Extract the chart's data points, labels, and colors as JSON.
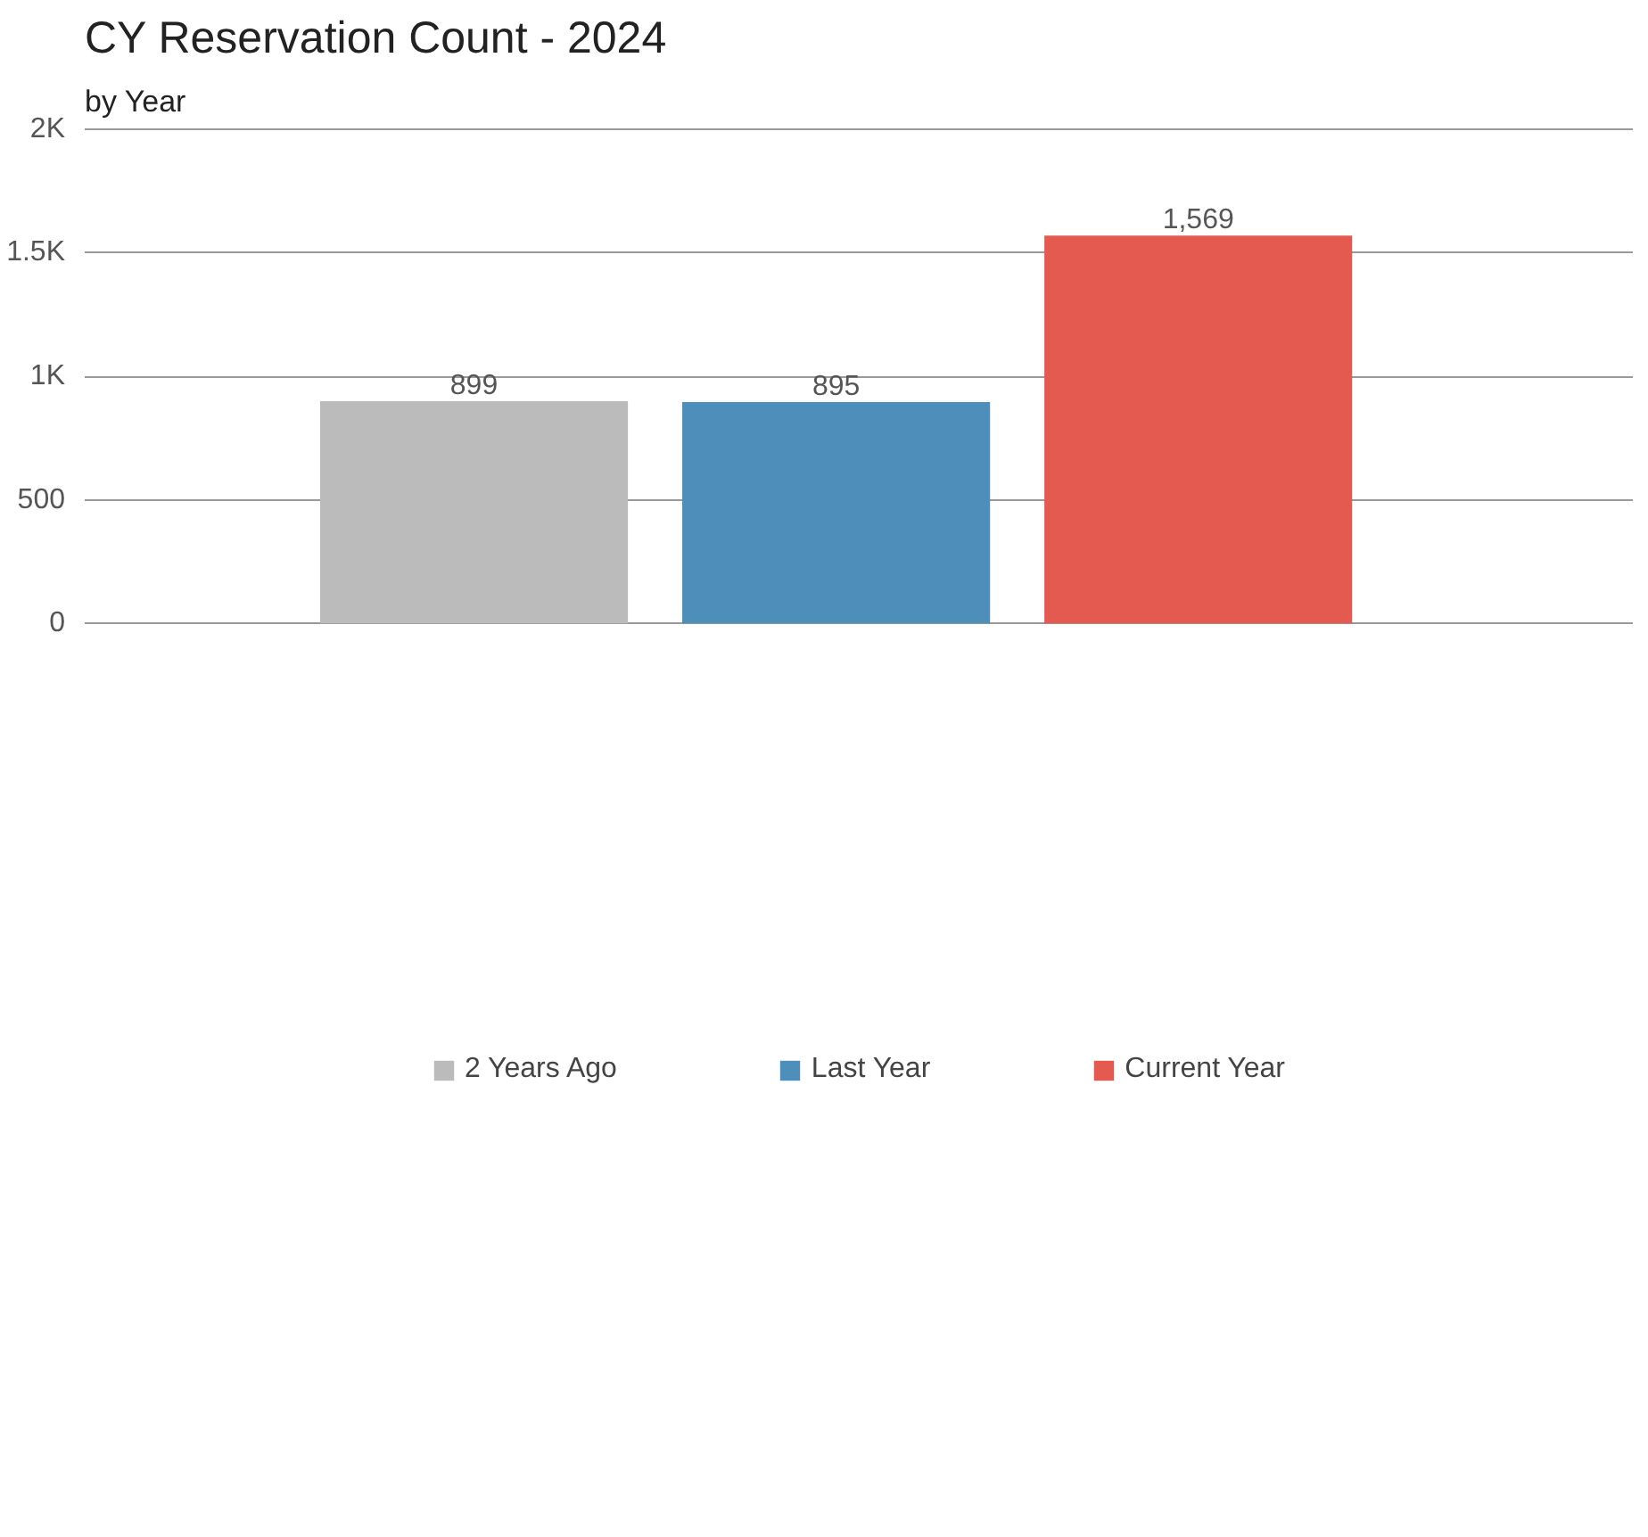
{
  "chart_data": {
    "type": "bar",
    "title": "CY Reservation Count - 2024",
    "subtitle": "by Year",
    "categories": [
      null,
      null,
      null
    ],
    "series": [
      {
        "name": "2 Years Ago",
        "color": "#bbbbbb",
        "values": [
          899,
          null,
          null
        ]
      },
      {
        "name": "Last Year",
        "color": "#4e8ebb",
        "values": [
          null,
          895,
          null
        ]
      },
      {
        "name": "Current Year",
        "color": "#e45a50",
        "values": [
          null,
          null,
          1569
        ]
      }
    ],
    "ylim": [
      0,
      2000
    ],
    "yticks": [
      0,
      500,
      {
        "value": 1000,
        "label": "1K"
      },
      {
        "value": 1500,
        "label": "1.5K"
      },
      {
        "value": 2000,
        "label": "2K"
      }
    ],
    "value_labels": [
      [
        "899",
        null,
        null
      ],
      [
        null,
        "895",
        null
      ],
      [
        null,
        null,
        "1,569"
      ]
    ],
    "grid": "y",
    "legend": "bottom"
  }
}
